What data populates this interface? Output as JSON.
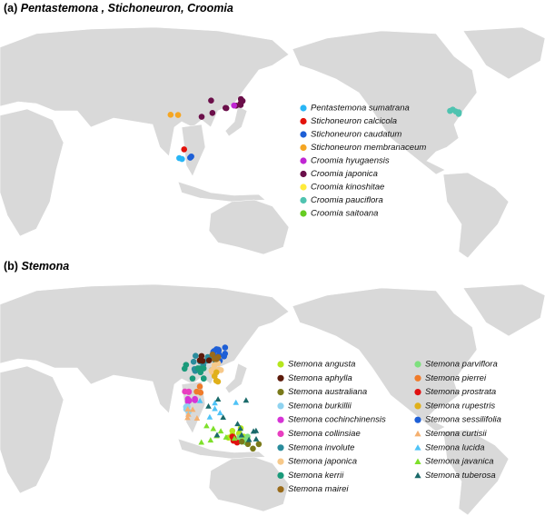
{
  "panels": [
    {
      "label": "(a)",
      "title": "Pentastemona , Stichoneuron, Croomia",
      "legend": [
        {
          "name": "Pentastemona sumatrana",
          "color": "#29b6f6",
          "shape": "circle"
        },
        {
          "name": "Stichoneuron calcicola",
          "color": "#e3120b",
          "shape": "circle"
        },
        {
          "name": "Stichoneuron caudatum",
          "color": "#1e5fd6",
          "shape": "circle"
        },
        {
          "name": "Stichoneuron membranaceum",
          "color": "#f5a623",
          "shape": "circle"
        },
        {
          "name": "Croomia hyugaensis",
          "color": "#c026d3",
          "shape": "circle"
        },
        {
          "name": "Croomia japonica",
          "color": "#6b0f4a",
          "shape": "circle"
        },
        {
          "name": "Croomia kinoshitae",
          "color": "#ffeb3b",
          "shape": "circle"
        },
        {
          "name": "Croomia pauciflora",
          "color": "#4fc3b0",
          "shape": "circle"
        },
        {
          "name": "Croomia saitoana",
          "color": "#66cc22",
          "shape": "circle"
        }
      ]
    },
    {
      "label": "(b)",
      "title": "Stemona",
      "legend": [
        {
          "name": "Stemona angusta",
          "color": "#b5e61d",
          "shape": "circle"
        },
        {
          "name": "Stemona aphylla",
          "color": "#5c1a0a",
          "shape": "circle"
        },
        {
          "name": "Stemona australiana",
          "color": "#7a7a1a",
          "shape": "circle"
        },
        {
          "name": "Stemona burkillii",
          "color": "#8fd3f0",
          "shape": "circle"
        },
        {
          "name": "Stemona cochinchinensis",
          "color": "#d633d6",
          "shape": "circle"
        },
        {
          "name": "Stemona collinsiae",
          "color": "#e83ec0",
          "shape": "circle"
        },
        {
          "name": "Stemona involute",
          "color": "#2a8c9c",
          "shape": "circle"
        },
        {
          "name": "Stemona japonica",
          "color": "#f7c98a",
          "shape": "circle"
        },
        {
          "name": "Stemona kerrii",
          "color": "#1a9a7a",
          "shape": "circle"
        },
        {
          "name": "Stemona mairei",
          "color": "#9a6b1a",
          "shape": "circle"
        },
        {
          "name": "Stemona parviflora",
          "color": "#7ee07e",
          "shape": "circle"
        },
        {
          "name": "Stemona pierrei",
          "color": "#f07b2a",
          "shape": "circle"
        },
        {
          "name": "Stemona prostrata",
          "color": "#e01010",
          "shape": "circle"
        },
        {
          "name": "Stemona rupestris",
          "color": "#e0b01a",
          "shape": "circle"
        },
        {
          "name": "Stemona sessilifolia",
          "color": "#1e5fd6",
          "shape": "circle"
        },
        {
          "name": "Stemona curtisii",
          "color": "#f5b070",
          "shape": "triangle"
        },
        {
          "name": "Stemona lucida",
          "color": "#4fc3f7",
          "shape": "triangle"
        },
        {
          "name": "Stemona javanica",
          "color": "#7ee02a",
          "shape": "triangle"
        },
        {
          "name": "Stemona tuberosa",
          "color": "#1a6a6a",
          "shape": "triangle"
        }
      ]
    }
  ]
}
